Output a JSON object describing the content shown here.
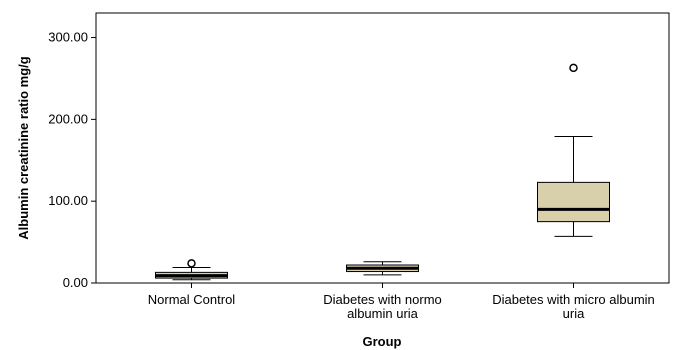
{
  "chart_data": {
    "type": "boxplot",
    "xlabel": "Group",
    "ylabel": "Albumin creatinine ratio mg/g",
    "ylim": [
      0,
      330
    ],
    "yticks": [
      "0.00",
      "100.00",
      "200.00",
      "300.00"
    ],
    "ytick_values": [
      0,
      100,
      200,
      300
    ],
    "categories": [
      [
        "Normal Control"
      ],
      [
        "Diabetes with normo",
        "albumin uria"
      ],
      [
        "Diabetes with micro albumin",
        "uria"
      ]
    ],
    "boxes": [
      {
        "whisker_low": 4,
        "q1": 6,
        "median": 9,
        "q3": 13,
        "whisker_high": 19,
        "outliers": [
          24
        ]
      },
      {
        "whisker_low": 10,
        "q1": 14,
        "median": 18,
        "q3": 22,
        "whisker_high": 26,
        "outliers": []
      },
      {
        "whisker_low": 57,
        "q1": 75,
        "median": 90,
        "q3": 123,
        "whisker_high": 179,
        "outliers": [
          263
        ]
      }
    ],
    "grid": false,
    "colors": {
      "box_fill": "#d7d0aa",
      "stroke": "#000000",
      "plot_bg": "#ffffff"
    }
  }
}
